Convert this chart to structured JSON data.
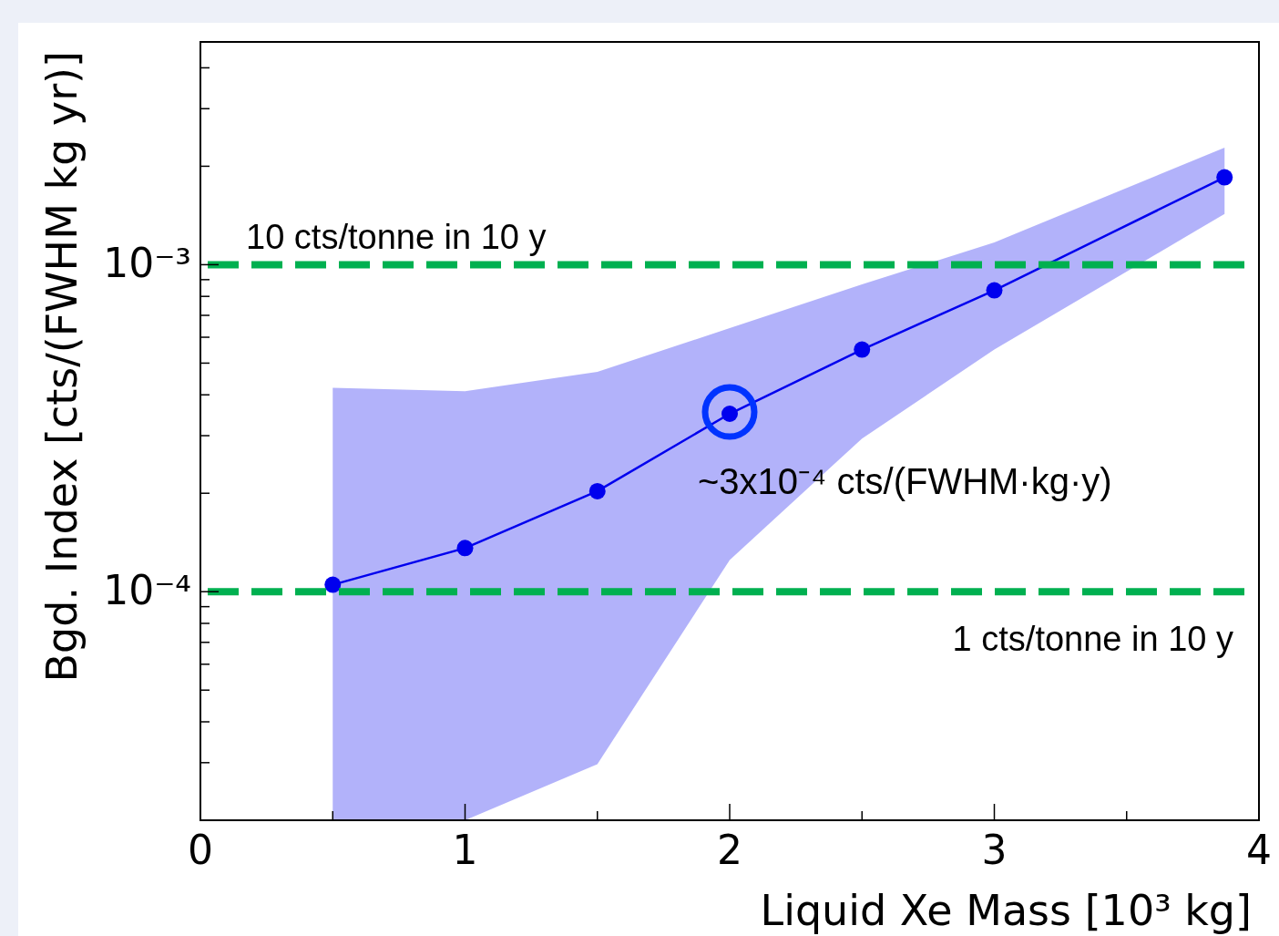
{
  "chart_data": {
    "type": "line",
    "xlabel": "Liquid Xe Mass [10³ kg]",
    "ylabel": "Bgd. Index [cts/(FWHM kg yr)]",
    "x": [
      0.5,
      1,
      1.5,
      2,
      2.5,
      3,
      3.87
    ],
    "series": [
      {
        "color": "#0000ee",
        "values": [
          0.000105,
          0.000136,
          0.000203,
          0.00035,
          0.00055,
          0.000835,
          0.00185
        ],
        "lower": [
          2e-05,
          2e-05,
          2.97e-05,
          0.000125,
          0.000294,
          0.00055,
          0.00143
        ],
        "upper": [
          0.00042,
          0.00041,
          0.00047,
          0.00064,
          0.00087,
          0.00117,
          0.00228
        ]
      }
    ],
    "log": "y",
    "marker": "circle",
    "line_style": "solid",
    "grid": false,
    "xlim": [
      0,
      4
    ],
    "xticks": [
      0,
      {
        "value": 0.5,
        "label": null
      },
      1,
      {
        "value": 1.5,
        "label": null
      },
      2,
      {
        "value": 2.5,
        "label": null
      },
      3,
      {
        "value": 3.5,
        "label": null
      },
      4
    ],
    "ylim": [
      2e-05,
      0.0048
    ],
    "yticks": [
      {
        "value": 2e-05,
        "label": null
      },
      {
        "value": 3e-05,
        "label": null
      },
      {
        "value": 4e-05,
        "label": null
      },
      {
        "value": 5e-05,
        "label": null
      },
      {
        "value": 6e-05,
        "label": null
      },
      {
        "value": 7e-05,
        "label": null
      },
      {
        "value": 8e-05,
        "label": null
      },
      {
        "value": 9e-05,
        "label": null
      },
      {
        "value": 0.0001,
        "label": "10⁻⁴"
      },
      {
        "value": 0.0002,
        "label": null
      },
      {
        "value": 0.0003,
        "label": null
      },
      {
        "value": 0.0004,
        "label": null
      },
      {
        "value": 0.0005,
        "label": null
      },
      {
        "value": 0.0006,
        "label": null
      },
      {
        "value": 0.0007,
        "label": null
      },
      {
        "value": 0.0008,
        "label": null
      },
      {
        "value": 0.0009,
        "label": null
      },
      {
        "value": 0.001,
        "label": "10⁻³"
      },
      {
        "value": 0.002,
        "label": null
      },
      {
        "value": 0.003,
        "label": null
      },
      {
        "value": 0.004,
        "label": null
      }
    ],
    "ref_lines": [
      {
        "axis": "y",
        "value": 0.001,
        "label": "10 cts/tonne in 10 y",
        "color": "#00b050",
        "line_style": "dashed"
      },
      {
        "axis": "y",
        "value": 0.0001,
        "label": "1 cts/tonne in 10 y",
        "color": "#00b050",
        "line_style": "dashed"
      }
    ],
    "annotations": [
      {
        "text": "~3x10⁻⁴ cts/(FWHM·kg·y)",
        "x": 2,
        "y": 0.00035
      }
    ]
  }
}
